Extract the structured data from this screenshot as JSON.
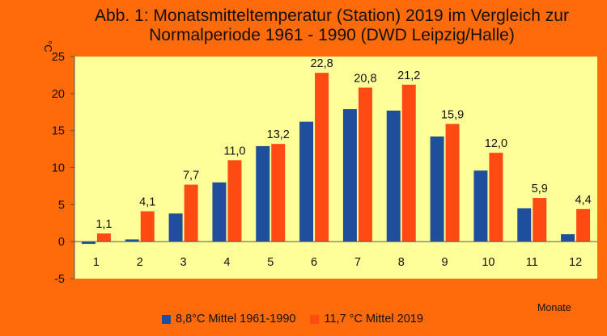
{
  "chart_data": {
    "type": "bar",
    "title_line1": "Abb. 1: Monatsmitteltemperatur (Station) 2019 im Vergleich zur",
    "title_line2": "Normalperiode 1961 - 1990 (DWD Leipzig/Halle)",
    "xlabel": "Monate",
    "ylabel": "°C",
    "ylim": [
      -5,
      25
    ],
    "yticks": [
      -5,
      0,
      5,
      10,
      15,
      20,
      25
    ],
    "categories": [
      "1",
      "2",
      "3",
      "4",
      "5",
      "6",
      "7",
      "8",
      "9",
      "10",
      "11",
      "12"
    ],
    "series": [
      {
        "name": "8,8°C  Mittel 1961-1990",
        "color": "#1F4E9C",
        "values": [
          -0.3,
          0.3,
          3.8,
          8.0,
          12.9,
          16.2,
          17.9,
          17.7,
          14.2,
          9.6,
          4.5,
          1.0
        ]
      },
      {
        "name": "11,7 °C Mittel 2019",
        "color": "#FF4A14",
        "values": [
          1.1,
          4.1,
          7.7,
          11.0,
          13.2,
          22.8,
          20.8,
          21.2,
          15.9,
          12.0,
          5.9,
          4.4
        ],
        "labels": [
          "1,1",
          "4,1",
          "7,7",
          "11,0",
          "13,2",
          "22,8",
          "20,8",
          "21,2",
          "15,9",
          "12,0",
          "5,9",
          "4,4"
        ]
      }
    ],
    "grid": false,
    "legend_position": "bottom",
    "plot_background": "#FFFF99",
    "page_background": "#FF6A0A"
  }
}
